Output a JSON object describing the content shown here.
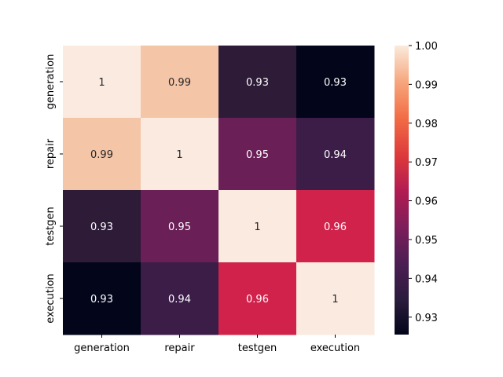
{
  "chart_data": {
    "type": "heatmap",
    "title": "",
    "xlabel": "",
    "ylabel": "",
    "x_categories": [
      "generation",
      "repair",
      "testgen",
      "execution"
    ],
    "y_categories": [
      "generation",
      "repair",
      "testgen",
      "execution"
    ],
    "values": [
      [
        1.0,
        0.99,
        0.93,
        0.93
      ],
      [
        0.99,
        1.0,
        0.95,
        0.94
      ],
      [
        0.93,
        0.95,
        1.0,
        0.96
      ],
      [
        0.93,
        0.94,
        0.96,
        1.0
      ]
    ],
    "annotations": [
      [
        "1",
        "0.99",
        "0.93",
        "0.93"
      ],
      [
        "0.99",
        "1",
        "0.95",
        "0.94"
      ],
      [
        "0.93",
        "0.95",
        "1",
        "0.96"
      ],
      [
        "0.93",
        "0.94",
        "0.96",
        "1"
      ]
    ],
    "cell_colors": [
      [
        "#faeae0",
        "#f5c5a8",
        "#2d1b38",
        "#03051a"
      ],
      [
        "#f5c5a8",
        "#faeae0",
        "#6a1f56",
        "#3b1d47"
      ],
      [
        "#2d1b38",
        "#6a1f56",
        "#faeae0",
        "#d0224a"
      ],
      [
        "#03051a",
        "#3b1d47",
        "#d0224a",
        "#faeae0"
      ]
    ],
    "colorbar": {
      "range": [
        0.9255,
        1.0
      ],
      "ticks": [
        0.93,
        0.94,
        0.95,
        0.96,
        0.97,
        0.98,
        0.99,
        1.0
      ],
      "tick_labels": [
        "0.93",
        "0.94",
        "0.95",
        "0.96",
        "0.97",
        "0.98",
        "0.99",
        "1.00"
      ],
      "colormap": "rocket"
    }
  }
}
